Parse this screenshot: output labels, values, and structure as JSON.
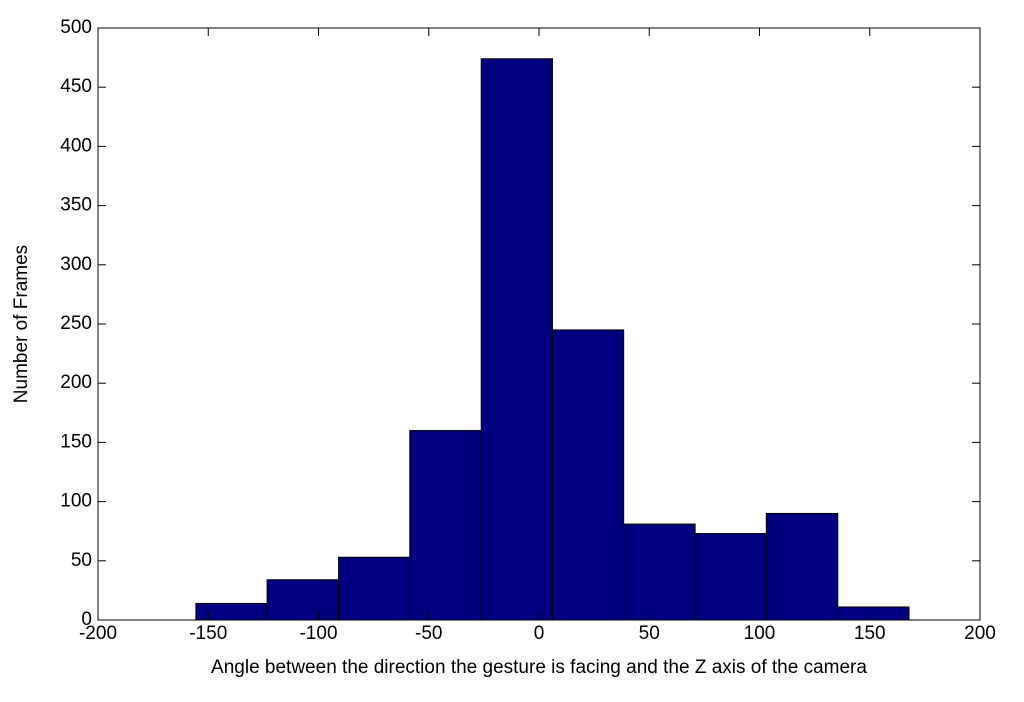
{
  "chart_data": {
    "type": "histogram",
    "xlabel": "Angle between the direction the gesture is facing and the Z axis of the camera",
    "ylabel": "Number of Frames",
    "bins": [
      -155.6,
      -123.3,
      -90.9,
      -58.6,
      -26.2,
      6.1,
      38.4,
      70.8,
      103.1,
      135.5,
      167.8
    ],
    "values": [
      14,
      34,
      53,
      160,
      474,
      245,
      81,
      73,
      90,
      11
    ],
    "color": "#000080",
    "xlim": [
      -200,
      200
    ],
    "xticks": [
      -200,
      -150,
      -100,
      -50,
      0,
      50,
      100,
      150,
      200
    ],
    "ylim": [
      0,
      500
    ],
    "yticks": [
      0,
      50,
      100,
      150,
      200,
      250,
      300,
      350,
      400,
      450,
      500
    ],
    "grid": false
  }
}
